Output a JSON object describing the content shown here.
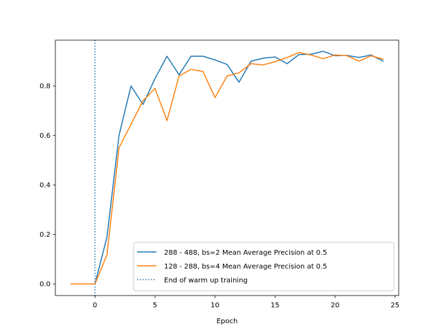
{
  "chart_data": {
    "type": "line",
    "title": "",
    "xlabel": "Epoch",
    "ylabel": "",
    "xlim": [
      -3.3,
      25.3
    ],
    "ylim": [
      -0.047,
      0.985
    ],
    "xticks": [
      0,
      5,
      10,
      15,
      20,
      25
    ],
    "xtick_labels": [
      "0",
      "5",
      "10",
      "15",
      "20",
      "25"
    ],
    "yticks": [
      0.0,
      0.2,
      0.4,
      0.6,
      0.8
    ],
    "ytick_labels": [
      "0.0",
      "0.2",
      "0.4",
      "0.6",
      "0.8"
    ],
    "grid": false,
    "legend_position": "lower-right",
    "series": [
      {
        "name": "288 - 488, bs=2 Mean Average Precision at 0.5",
        "color": "#1f77b4",
        "linestyle": "solid",
        "x": [
          -2,
          -1,
          0,
          1,
          2,
          3,
          4,
          5,
          6,
          7,
          8,
          9,
          10,
          11,
          12,
          13,
          14,
          15,
          16,
          17,
          18,
          19,
          20,
          21,
          22,
          23,
          24
        ],
        "y": [
          0.0,
          0.0,
          0.0,
          0.19,
          0.6,
          0.8,
          0.725,
          0.83,
          0.92,
          0.845,
          0.92,
          0.92,
          0.905,
          0.887,
          0.815,
          0.9,
          0.912,
          0.917,
          0.89,
          0.927,
          0.928,
          0.94,
          0.922,
          0.923,
          0.915,
          0.925,
          0.9
        ]
      },
      {
        "name": "128 - 288, bs=4 Mean Average Precision at 0.5",
        "color": "#ff7f0e",
        "linestyle": "solid",
        "x": [
          -2,
          -1,
          0,
          1,
          2,
          3,
          4,
          5,
          6,
          7,
          8,
          9,
          10,
          11,
          12,
          13,
          14,
          15,
          16,
          17,
          18,
          19,
          20,
          21,
          22,
          23,
          24
        ],
        "y": [
          0.0,
          0.0,
          0.0,
          0.118,
          0.55,
          0.645,
          0.74,
          0.79,
          0.66,
          0.84,
          0.867,
          0.858,
          0.753,
          0.84,
          0.853,
          0.89,
          0.885,
          0.898,
          0.915,
          0.935,
          0.925,
          0.91,
          0.925,
          0.922,
          0.9,
          0.922,
          0.908
        ]
      },
      {
        "name": "End of warm up training",
        "color": "#1f77b4",
        "linestyle": "dotted",
        "vertical_line_x": 0
      }
    ]
  }
}
